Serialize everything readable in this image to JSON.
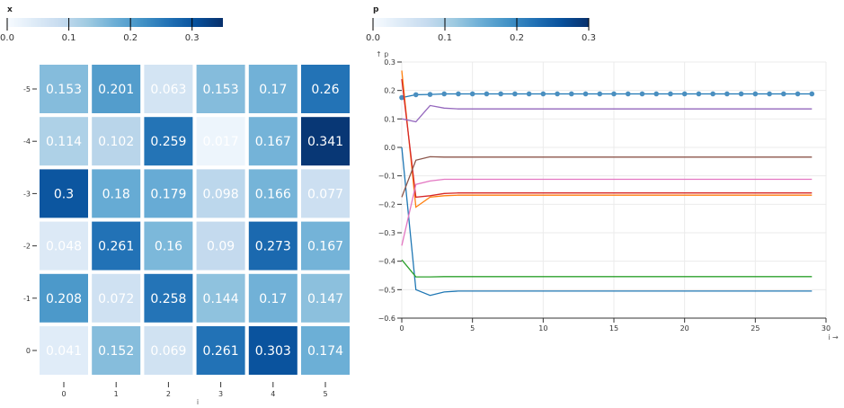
{
  "chart_data": [
    {
      "type": "heatmap",
      "legend": {
        "title": "x",
        "ticks": [
          "0.0",
          "0.1",
          "0.2",
          "0.3"
        ],
        "domain": [
          0,
          0.35
        ]
      },
      "xlabel": "i",
      "x_categories": [
        "0",
        "1",
        "2",
        "3",
        "4",
        "5"
      ],
      "y_categories": [
        "-5",
        "-4",
        "-3",
        "-2",
        "-1",
        "0"
      ],
      "values": [
        [
          0.153,
          0.201,
          0.063,
          0.153,
          0.17,
          0.26
        ],
        [
          0.114,
          0.102,
          0.259,
          0.017,
          0.167,
          0.341
        ],
        [
          0.3,
          0.18,
          0.179,
          0.098,
          0.166,
          0.077
        ],
        [
          0.048,
          0.261,
          0.16,
          0.09,
          0.273,
          0.167
        ],
        [
          0.208,
          0.072,
          0.258,
          0.144,
          0.17,
          0.147
        ],
        [
          0.041,
          0.152,
          0.069,
          0.261,
          0.303,
          0.174
        ]
      ],
      "colorscale": [
        "#f7fbff",
        "#deebf7",
        "#c6dbef",
        "#9ecae1",
        "#6baed6",
        "#4292c6",
        "#2171b5",
        "#08519c",
        "#08306b"
      ]
    },
    {
      "type": "line",
      "legend": {
        "title": "p",
        "ticks": [
          "0.0",
          "0.1",
          "0.2",
          "0.3"
        ],
        "domain": [
          0,
          0.3
        ]
      },
      "xlabel": "i →",
      "ylabel": "↑ p",
      "xlim": [
        0,
        30
      ],
      "ylim": [
        -0.6,
        0.3
      ],
      "xticks": [
        0,
        5,
        10,
        15,
        20,
        25,
        30
      ],
      "yticks": [
        -0.6,
        -0.5,
        -0.4,
        -0.3,
        -0.2,
        -0.1,
        0.0,
        0.1,
        0.2,
        0.3
      ],
      "ytick_labels": [
        "−0.6",
        "−0.5",
        "−0.4",
        "−0.3",
        "−0.2",
        "−0.1",
        "0.0",
        "0.1",
        "0.2",
        "0.3"
      ],
      "grid": true,
      "series": [
        {
          "color": "#1f77b4",
          "markers": true,
          "values": [
            [
              0,
              0.175
            ],
            [
              1,
              0.185
            ],
            [
              2,
              0.186
            ],
            [
              3,
              0.188
            ],
            [
              4,
              0.188
            ],
            [
              29,
              0.188
            ]
          ]
        },
        {
          "color": "#1f77b4",
          "markers": false,
          "values": [
            [
              0,
              0.0
            ],
            [
              1,
              -0.5
            ],
            [
              2,
              -0.52
            ],
            [
              3,
              -0.508
            ],
            [
              4,
              -0.505
            ],
            [
              29,
              -0.505
            ]
          ]
        },
        {
          "color": "#ff7f0e",
          "markers": false,
          "values": [
            [
              0,
              0.27
            ],
            [
              1,
              -0.21
            ],
            [
              2,
              -0.175
            ],
            [
              3,
              -0.17
            ],
            [
              4,
              -0.168
            ],
            [
              29,
              -0.168
            ]
          ]
        },
        {
          "color": "#2ca02c",
          "markers": false,
          "values": [
            [
              0,
              -0.395
            ],
            [
              1,
              -0.455
            ],
            [
              2,
              -0.455
            ],
            [
              3,
              -0.454
            ],
            [
              29,
              -0.454
            ]
          ]
        },
        {
          "color": "#d62728",
          "markers": false,
          "values": [
            [
              0,
              0.24
            ],
            [
              1,
              -0.175
            ],
            [
              2,
              -0.17
            ],
            [
              3,
              -0.162
            ],
            [
              4,
              -0.16
            ],
            [
              29,
              -0.16
            ]
          ]
        },
        {
          "color": "#9467bd",
          "markers": false,
          "values": [
            [
              0,
              0.1
            ],
            [
              1,
              0.09
            ],
            [
              2,
              0.147
            ],
            [
              3,
              0.138
            ],
            [
              4,
              0.135
            ],
            [
              29,
              0.135
            ]
          ]
        },
        {
          "color": "#8c564b",
          "markers": false,
          "values": [
            [
              0,
              -0.175
            ],
            [
              1,
              -0.045
            ],
            [
              2,
              -0.033
            ],
            [
              3,
              -0.034
            ],
            [
              29,
              -0.034
            ]
          ]
        },
        {
          "color": "#e377c2",
          "markers": false,
          "values": [
            [
              0,
              -0.345
            ],
            [
              1,
              -0.13
            ],
            [
              2,
              -0.118
            ],
            [
              3,
              -0.112
            ],
            [
              29,
              -0.112
            ]
          ]
        }
      ],
      "marker_color": "#4a8fc0"
    }
  ]
}
